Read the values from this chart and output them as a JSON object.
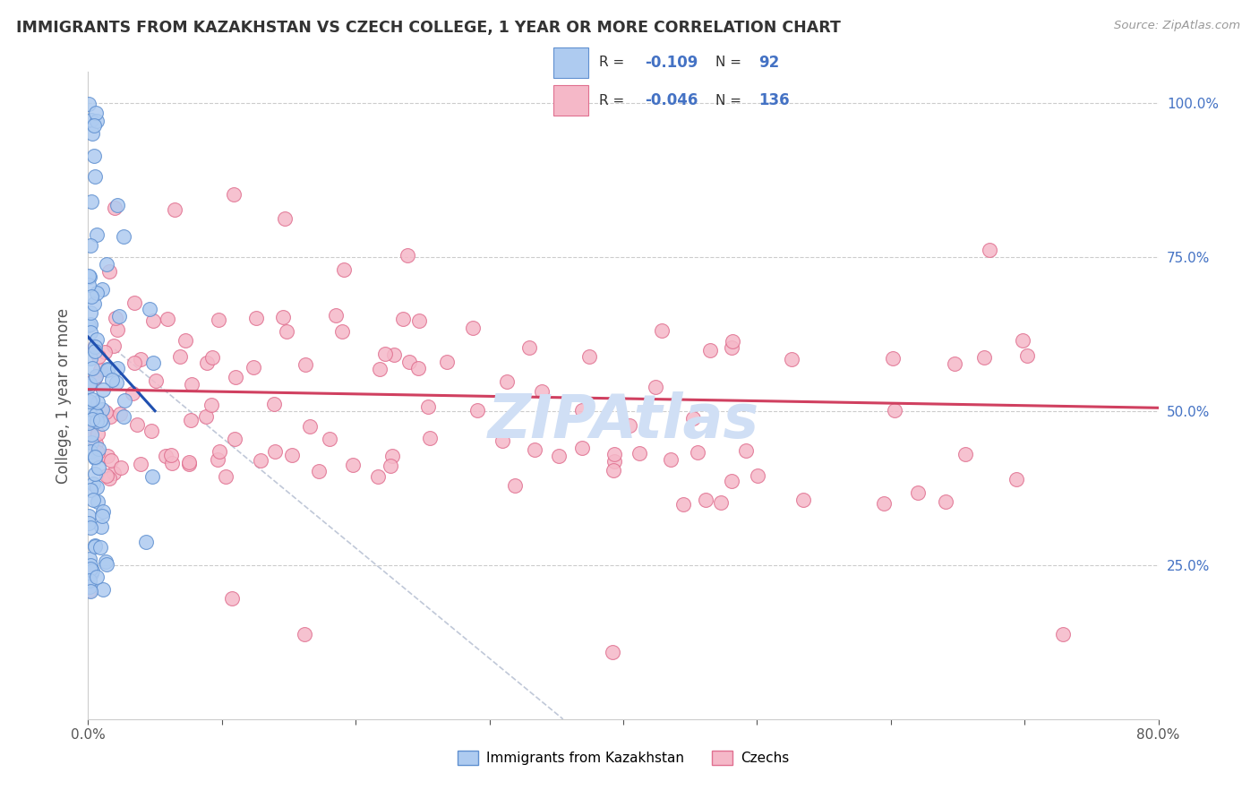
{
  "title": "IMMIGRANTS FROM KAZAKHSTAN VS CZECH COLLEGE, 1 YEAR OR MORE CORRELATION CHART",
  "source": "Source: ZipAtlas.com",
  "ylabel": "College, 1 year or more",
  "xlim": [
    0.0,
    0.8
  ],
  "ylim": [
    0.0,
    1.05
  ],
  "xtick_positions": [
    0.0,
    0.1,
    0.2,
    0.3,
    0.4,
    0.5,
    0.6,
    0.7,
    0.8
  ],
  "xticklabels": [
    "0.0%",
    "",
    "",
    "",
    "",
    "",
    "",
    "",
    "80.0%"
  ],
  "ytick_positions": [
    0.25,
    0.5,
    0.75,
    1.0
  ],
  "ytick_labels": [
    "25.0%",
    "50.0%",
    "75.0%",
    "100.0%"
  ],
  "blue_fill": "#AECBF0",
  "blue_edge": "#6090D0",
  "pink_fill": "#F5B8C8",
  "pink_edge": "#E07090",
  "blue_line_color": "#2050B0",
  "pink_line_color": "#D04060",
  "gray_line_color": "#C0C8D8",
  "watermark_color": "#D0DFF5",
  "background_color": "#FFFFFF",
  "grid_color": "#CCCCCC",
  "label1": "Immigrants from Kazakhstan",
  "label2": "Czechs",
  "title_color": "#333333",
  "source_color": "#999999",
  "ytick_color": "#4472C4",
  "xtick_color": "#555555",
  "ylabel_color": "#555555",
  "legend_edge_color": "#CCCCCC",
  "legend_text_color": "#333333",
  "legend_val_color": "#4472C4"
}
